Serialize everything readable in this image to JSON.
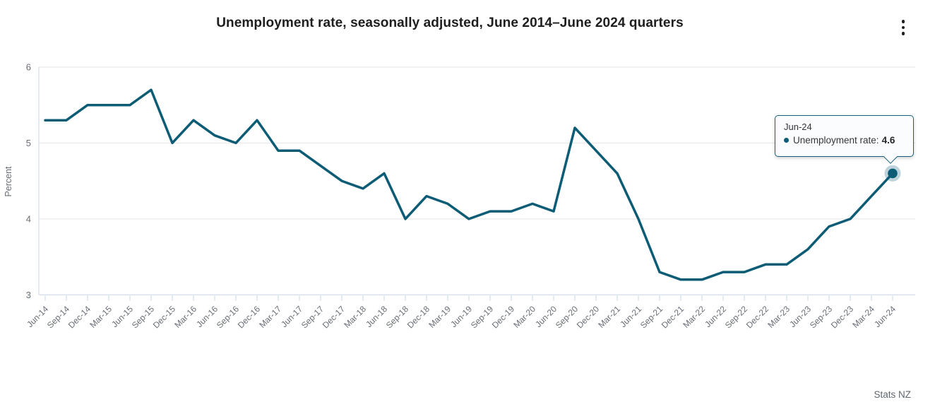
{
  "header": {
    "title": "Unemployment rate, seasonally adjusted, June 2014–June 2024 quarters"
  },
  "tooltip": {
    "label": "Jun-24",
    "series_label": "Unemployment rate: ",
    "value": "4.6"
  },
  "footer": {
    "source": "Stats NZ"
  },
  "colors": {
    "line": "#0d5c75",
    "grid": "#e4e4e4",
    "axis": "#c9d6ea",
    "axis_text": "#696e76"
  },
  "chart_data": {
    "type": "line",
    "title": "Unemployment rate, seasonally adjusted, June 2014–June 2024 quarters",
    "xlabel": "",
    "ylabel": "Percent",
    "ylim": [
      3,
      6
    ],
    "yticks": [
      3,
      4,
      5,
      6
    ],
    "grid": true,
    "legend_position": "none",
    "x": [
      "Jun-14",
      "Sep-14",
      "Dec-14",
      "Mar-15",
      "Jun-15",
      "Sep-15",
      "Dec-15",
      "Mar-16",
      "Jun-16",
      "Sep-16",
      "Dec-16",
      "Mar-17",
      "Jun-17",
      "Sep-17",
      "Dec-17",
      "Mar-18",
      "Jun-18",
      "Sep-18",
      "Dec-18",
      "Mar-19",
      "Jun-19",
      "Sep-19",
      "Dec-19",
      "Mar-20",
      "Jun-20",
      "Sep-20",
      "Dec-20",
      "Mar-21",
      "Jun-21",
      "Sep-21",
      "Dec-21",
      "Mar-22",
      "Jun-22",
      "Sep-22",
      "Dec-22",
      "Mar-23",
      "Jun-23",
      "Sep-23",
      "Dec-23",
      "Mar-24",
      "Jun-24"
    ],
    "series": [
      {
        "name": "Unemployment rate",
        "values": [
          5.3,
          5.3,
          5.5,
          5.5,
          5.5,
          5.7,
          5.0,
          5.3,
          5.1,
          5.0,
          5.3,
          4.9,
          4.9,
          4.7,
          4.5,
          4.4,
          4.6,
          4.0,
          4.3,
          4.2,
          4.0,
          4.1,
          4.1,
          4.2,
          4.1,
          5.2,
          4.9,
          4.6,
          4.0,
          3.3,
          3.2,
          3.2,
          3.3,
          3.3,
          3.4,
          3.4,
          3.6,
          3.9,
          4.0,
          4.3,
          4.6
        ]
      }
    ]
  }
}
